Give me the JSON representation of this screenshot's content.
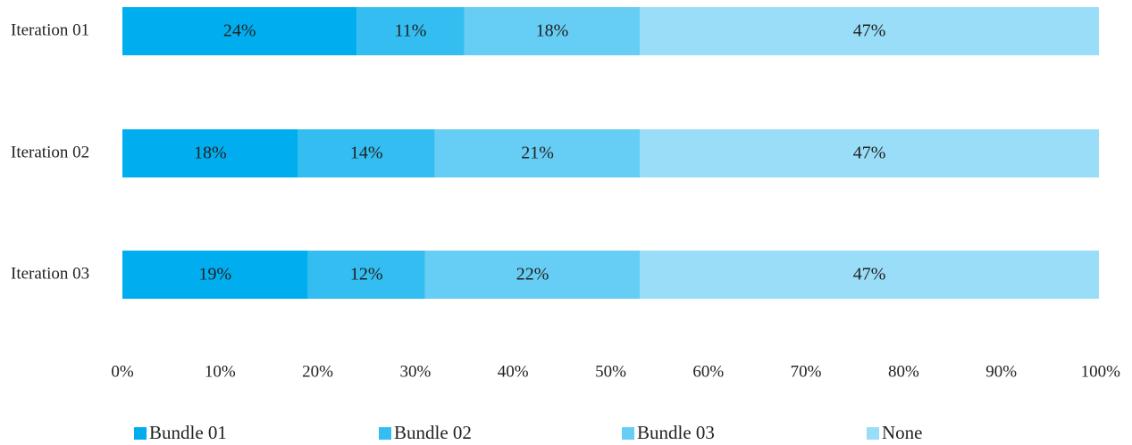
{
  "chart_data": {
    "type": "bar",
    "orientation": "horizontal",
    "stacked": true,
    "categories": [
      "Iteration 01",
      "Iteration 02",
      "Iteration 03"
    ],
    "series": [
      {
        "name": "Bundle 01",
        "values": [
          24,
          18,
          19
        ],
        "color": "#00aeef",
        "labels": [
          "24%",
          "18%",
          "19%"
        ]
      },
      {
        "name": "Bundle 02",
        "values": [
          11,
          14,
          12
        ],
        "color": "#33bdf0",
        "labels": [
          "11%",
          "14%",
          "12%"
        ]
      },
      {
        "name": "Bundle 03",
        "values": [
          18,
          21,
          22
        ],
        "color": "#66cdf5",
        "labels": [
          "18%",
          "21%",
          "22%"
        ]
      },
      {
        "name": "None",
        "values": [
          47,
          47,
          47
        ],
        "color": "#99ddf8",
        "labels": [
          "47%",
          "47%",
          "47%"
        ]
      }
    ],
    "xlim": [
      0,
      100
    ],
    "x_ticks": [
      "0%",
      "10%",
      "20%",
      "30%",
      "40%",
      "50%",
      "60%",
      "70%",
      "80%",
      "90%",
      "100%"
    ],
    "grid": false,
    "legend_position": "bottom"
  }
}
